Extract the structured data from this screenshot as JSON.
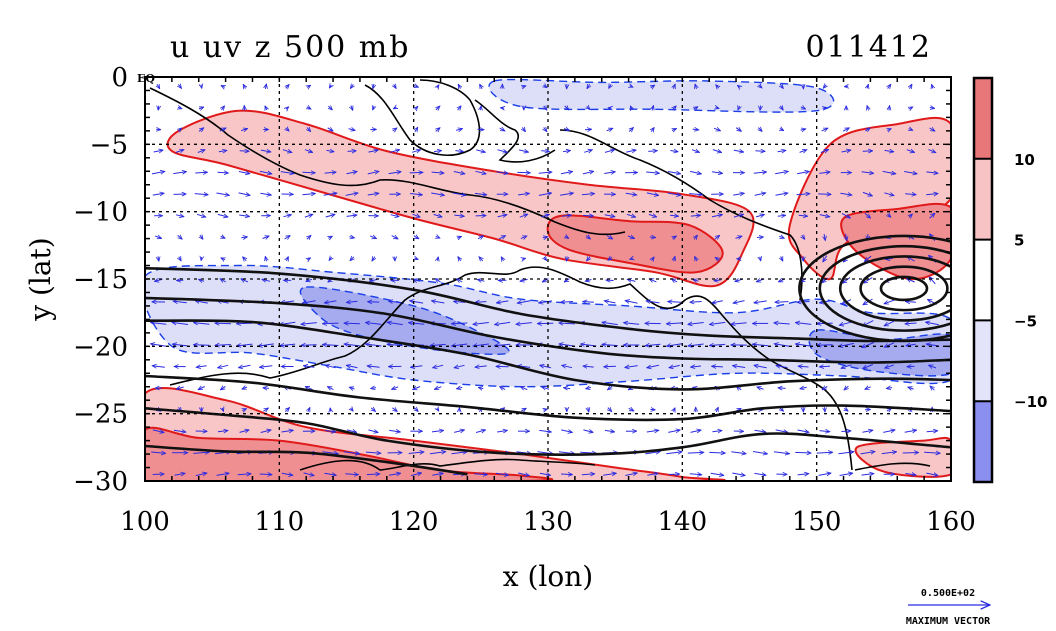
{
  "chart_data": {
    "type": "contour",
    "title_left": "u uv z 500 mb",
    "title_right": "011412",
    "xlabel": "x (lon)",
    "ylabel": "y (lat)",
    "xlim": [
      100,
      160
    ],
    "ylim": [
      -30,
      0
    ],
    "x_ticks": [
      {
        "value": 100,
        "label": "100"
      },
      {
        "value": 110,
        "label": "110"
      },
      {
        "value": 120,
        "label": "120"
      },
      {
        "value": 130,
        "label": "130"
      },
      {
        "value": 140,
        "label": "140"
      },
      {
        "value": 150,
        "label": "150"
      },
      {
        "value": 160,
        "label": "160"
      }
    ],
    "y_ticks": [
      {
        "value": 0,
        "label": "0"
      },
      {
        "value": -5,
        "label": "−5"
      },
      {
        "value": -10,
        "label": "−10"
      },
      {
        "value": -15,
        "label": "−15"
      },
      {
        "value": -20,
        "label": "−20"
      },
      {
        "value": -25,
        "label": "−25"
      },
      {
        "value": -30,
        "label": "−30"
      }
    ],
    "eq_label": "EQ",
    "grid": true,
    "colorbar": {
      "levels": [
        {
          "value": 10,
          "label": "10"
        },
        {
          "value": 5,
          "label": "5"
        },
        {
          "value": -5,
          "label": "−5"
        },
        {
          "value": -10,
          "label": "−10"
        }
      ],
      "colors": [
        "#e8777a",
        "#f7c3c4",
        "#ffffff",
        "#e3e4fa",
        "#8b8ff0"
      ]
    },
    "shading_colors": {
      "strong_positive": "#ef8f92",
      "positive": "#f8c6c7",
      "negative": "#dcdff7",
      "strong_negative": "#a6abef"
    },
    "zonal_wind_regions": [
      {
        "sign": "positive",
        "level": 5,
        "outline": [
          [
            102.5,
            -4
          ],
          [
            107,
            -2.5
          ],
          [
            112,
            -3.5
          ],
          [
            118,
            -5.5
          ],
          [
            126,
            -7
          ],
          [
            133,
            -8
          ],
          [
            140,
            -8.7
          ],
          [
            145,
            -10
          ],
          [
            144.5,
            -13
          ],
          [
            142.5,
            -15.5
          ],
          [
            138,
            -14.5
          ],
          [
            131,
            -13.5
          ],
          [
            126,
            -12
          ],
          [
            120,
            -10.5
          ],
          [
            113,
            -8.5
          ],
          [
            106,
            -6.5
          ],
          [
            102,
            -5.5
          ]
        ]
      },
      {
        "sign": "positive",
        "level": 10,
        "outline": [
          [
            131,
            -10.3
          ],
          [
            136,
            -10.7
          ],
          [
            140.5,
            -11
          ],
          [
            143,
            -13
          ],
          [
            141,
            -14.5
          ],
          [
            136,
            -13.8
          ],
          [
            131.5,
            -12.8
          ],
          [
            130,
            -11.5
          ]
        ]
      },
      {
        "sign": "positive",
        "level": 5,
        "outline": [
          [
            148,
            -11
          ],
          [
            151,
            -5
          ],
          [
            156,
            -3.5
          ],
          [
            160,
            -3.5
          ],
          [
            160,
            -9
          ],
          [
            156,
            -10.5
          ],
          [
            152,
            -12.5
          ],
          [
            151,
            -15
          ],
          [
            149,
            -13.5
          ]
        ]
      },
      {
        "sign": "positive",
        "level": 10,
        "outline": [
          [
            152,
            -10.5
          ],
          [
            156,
            -9.8
          ],
          [
            160,
            -9.7
          ],
          [
            160,
            -13.5
          ],
          [
            157,
            -15
          ],
          [
            153,
            -13
          ]
        ]
      },
      {
        "sign": "positive",
        "level": 5,
        "outline": [
          [
            100,
            -23.5
          ],
          [
            106,
            -24
          ],
          [
            112,
            -26
          ],
          [
            120,
            -27
          ],
          [
            128,
            -28
          ],
          [
            135,
            -29
          ],
          [
            140,
            -29.7
          ],
          [
            140,
            -30
          ],
          [
            100,
            -30
          ]
        ]
      },
      {
        "sign": "positive",
        "level": 10,
        "outline": [
          [
            100,
            -26.2
          ],
          [
            104,
            -26.8
          ],
          [
            110,
            -27
          ],
          [
            116,
            -28
          ],
          [
            122,
            -29.2
          ],
          [
            128,
            -29.6
          ],
          [
            128,
            -30
          ],
          [
            100,
            -30
          ]
        ]
      },
      {
        "sign": "positive",
        "level": 5,
        "outline": [
          [
            153,
            -27.5
          ],
          [
            158,
            -27
          ],
          [
            160,
            -27
          ],
          [
            160,
            -29.5
          ],
          [
            155,
            -29.3
          ]
        ]
      },
      {
        "sign": "negative",
        "level": -5,
        "outline": [
          [
            100,
            -14.8
          ],
          [
            107,
            -14
          ],
          [
            114,
            -14.5
          ],
          [
            122,
            -15.3
          ],
          [
            128,
            -16.5
          ],
          [
            136,
            -17
          ],
          [
            144,
            -17.5
          ],
          [
            150,
            -16.5
          ],
          [
            154,
            -17.5
          ],
          [
            160,
            -18
          ],
          [
            160,
            -22.5
          ],
          [
            152,
            -22.2
          ],
          [
            144,
            -22
          ],
          [
            136,
            -22.6
          ],
          [
            128,
            -23
          ],
          [
            120,
            -22.5
          ],
          [
            114,
            -21.5
          ],
          [
            108,
            -20.5
          ],
          [
            102,
            -20
          ]
        ]
      },
      {
        "sign": "negative",
        "level": -10,
        "outline": [
          [
            112,
            -15.6
          ],
          [
            120,
            -17
          ],
          [
            125,
            -19
          ],
          [
            127,
            -20.5
          ],
          [
            122,
            -20.3
          ],
          [
            116,
            -19.2
          ],
          [
            113,
            -17.8
          ]
        ]
      },
      {
        "sign": "negative",
        "level": -10,
        "outline": [
          [
            150,
            -18.8
          ],
          [
            155,
            -19.5
          ],
          [
            160,
            -19.2
          ],
          [
            160,
            -22
          ],
          [
            154,
            -21.8
          ],
          [
            150,
            -20.6
          ]
        ]
      },
      {
        "sign": "negative",
        "level": -5,
        "outline": [
          [
            126,
            -0.3
          ],
          [
            134,
            -0.4
          ],
          [
            142,
            -0.3
          ],
          [
            150,
            -0.8
          ],
          [
            150,
            -2.5
          ],
          [
            138,
            -2.4
          ],
          [
            128,
            -2.2
          ]
        ]
      }
    ],
    "height_contours": [
      {
        "points": [
          [
            100,
            -14.2
          ],
          [
            110,
            -14.6
          ],
          [
            120,
            -15.8
          ],
          [
            128,
            -17.6
          ],
          [
            136,
            -18.7
          ],
          [
            142,
            -19.2
          ],
          [
            148,
            -19.4
          ],
          [
            154,
            -19.6
          ],
          [
            160,
            -19.5
          ]
        ]
      },
      {
        "points": [
          [
            100,
            -16.4
          ],
          [
            110,
            -16.8
          ],
          [
            118,
            -17.6
          ],
          [
            126,
            -19.3
          ],
          [
            134,
            -20.5
          ],
          [
            140,
            -20.9
          ],
          [
            146,
            -21
          ],
          [
            154,
            -21.2
          ],
          [
            160,
            -21
          ]
        ]
      },
      {
        "points": [
          [
            100,
            -18.1
          ],
          [
            108,
            -18.2
          ],
          [
            116,
            -19.3
          ],
          [
            124,
            -20.6
          ],
          [
            132,
            -22.5
          ],
          [
            140,
            -23.2
          ],
          [
            148,
            -22.6
          ],
          [
            155,
            -22.4
          ],
          [
            160,
            -22.5
          ]
        ]
      },
      {
        "points": [
          [
            100,
            -22.2
          ],
          [
            108,
            -22.7
          ],
          [
            116,
            -23.8
          ],
          [
            124,
            -24.5
          ],
          [
            132,
            -25.3
          ],
          [
            140,
            -25.4
          ],
          [
            146,
            -24.6
          ],
          [
            152,
            -24.4
          ],
          [
            160,
            -24.8
          ]
        ]
      },
      {
        "points": [
          [
            100,
            -24.6
          ],
          [
            106,
            -25.1
          ],
          [
            112,
            -25.7
          ],
          [
            118,
            -27
          ],
          [
            126,
            -27.9
          ],
          [
            134,
            -28
          ],
          [
            140,
            -27.5
          ],
          [
            146,
            -26.5
          ],
          [
            152,
            -26.8
          ],
          [
            160,
            -27.5
          ]
        ]
      },
      {
        "points": [
          [
            100,
            -27.4
          ],
          [
            106,
            -27.8
          ],
          [
            112,
            -27.9
          ],
          [
            118,
            -28.6
          ],
          [
            124,
            -29.5
          ]
        ]
      }
    ],
    "low_center": {
      "x": 156.5,
      "y": -15.7,
      "rings": [
        0.9,
        1.7,
        2.5,
        3.3,
        4.1
      ]
    },
    "vector_legend": {
      "value_label": "0.500E+02",
      "caption": "MAXIMUM VECTOR"
    }
  }
}
